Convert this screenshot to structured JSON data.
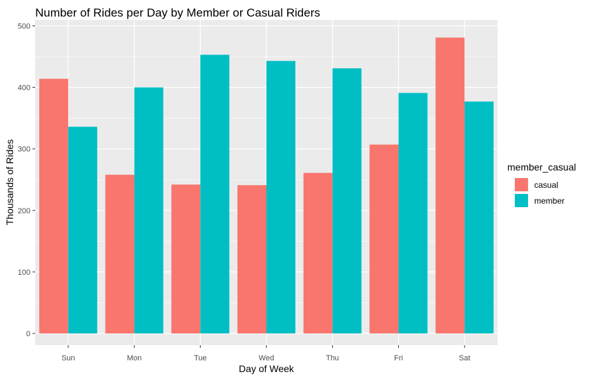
{
  "chart_data": {
    "type": "bar",
    "title": "Number of Rides per Day by Member or Casual Riders",
    "xlabel": "Day of Week",
    "ylabel": "Thousands of Rides",
    "categories": [
      "Sun",
      "Mon",
      "Tue",
      "Wed",
      "Thu",
      "Fri",
      "Sat"
    ],
    "series": [
      {
        "name": "casual",
        "color": "#F8766D",
        "values": [
          414,
          258,
          242,
          241,
          261,
          307,
          481
        ]
      },
      {
        "name": "member",
        "color": "#00BFC4",
        "values": [
          336,
          400,
          453,
          443,
          431,
          391,
          377
        ]
      }
    ],
    "ylim": [
      0,
      510
    ],
    "yticks": [
      0,
      100,
      200,
      300,
      400,
      500
    ],
    "grid": true,
    "panel_background": "#EBEBEB",
    "legend": {
      "title": "member_casual",
      "position": "right"
    }
  }
}
